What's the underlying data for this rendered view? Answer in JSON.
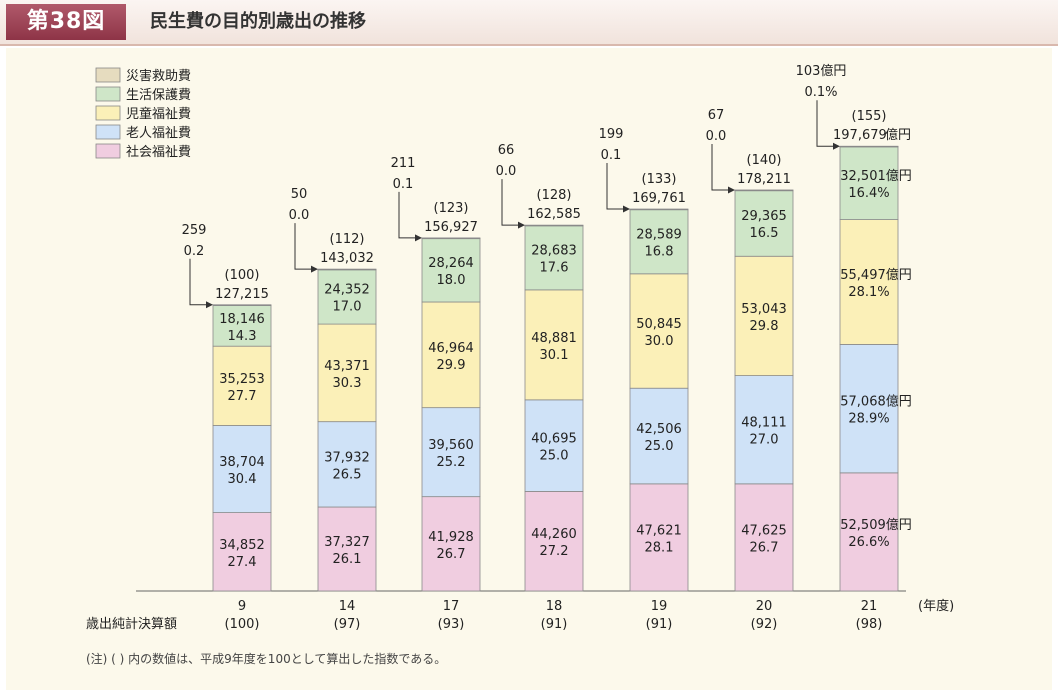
{
  "header": {
    "figure_label": "第38図",
    "title": "民生費の目的別歳出の推移"
  },
  "colors": {
    "社会福祉費": "#f0cde0",
    "老人福祉費": "#cfe2f7",
    "児童福祉費": "#fbf0b8",
    "生活保護費": "#cfe6c8",
    "災害救助費": "#e6dcbf"
  },
  "chart_data": {
    "type": "bar",
    "stacked": true,
    "title": "民生費の目的別歳出の推移",
    "xlabel": "(年度)",
    "ylabel": "",
    "unit": "億円",
    "legend_position": "top-left",
    "legend": [
      "災害救助費",
      "生活保護費",
      "児童福祉費",
      "老人福祉費",
      "社会福祉費"
    ],
    "categories": [
      "9",
      "14",
      "17",
      "18",
      "19",
      "20",
      "21"
    ],
    "index_row_label": "歳出純計決算額",
    "index_values": [
      "(100)",
      "(97)",
      "(93)",
      "(91)",
      "(91)",
      "(92)",
      "(98)"
    ],
    "totals": [
      "127,215",
      "143,032",
      "156,927",
      "162,585",
      "169,761",
      "178,211",
      "197,679"
    ],
    "totals_unit_suffix_last": "億円",
    "total_indices": [
      "(100)",
      "(112)",
      "(123)",
      "(128)",
      "(133)",
      "(140)",
      "(155)"
    ],
    "series": [
      {
        "name": "社会福祉費",
        "values": [
          34852,
          37327,
          41928,
          44260,
          47621,
          47625,
          52509
        ],
        "value_labels": [
          "34,852",
          "37,327",
          "41,928",
          "44,260",
          "47,621",
          "47,625",
          "52,509億円"
        ],
        "pct_labels": [
          "27.4",
          "26.1",
          "26.7",
          "27.2",
          "28.1",
          "26.7",
          "26.6%"
        ]
      },
      {
        "name": "老人福祉費",
        "values": [
          38704,
          37932,
          39560,
          40695,
          42506,
          48111,
          57068
        ],
        "value_labels": [
          "38,704",
          "37,932",
          "39,560",
          "40,695",
          "42,506",
          "48,111",
          "57,068億円"
        ],
        "pct_labels": [
          "30.4",
          "26.5",
          "25.2",
          "25.0",
          "25.0",
          "27.0",
          "28.9%"
        ]
      },
      {
        "name": "児童福祉費",
        "values": [
          35253,
          43371,
          46964,
          48881,
          50845,
          53043,
          55497
        ],
        "value_labels": [
          "35,253",
          "43,371",
          "46,964",
          "48,881",
          "50,845",
          "53,043",
          "55,497億円"
        ],
        "pct_labels": [
          "27.7",
          "30.3",
          "29.9",
          "30.1",
          "30.0",
          "29.8",
          "28.1%"
        ]
      },
      {
        "name": "生活保護費",
        "values": [
          18146,
          24352,
          28264,
          28683,
          28589,
          29365,
          32501
        ],
        "value_labels": [
          "18,146",
          "24,352",
          "28,264",
          "28,683",
          "28,589",
          "29,365",
          "32,501億円"
        ],
        "pct_labels": [
          "14.3",
          "17.0",
          "18.0",
          "17.6",
          "16.8",
          "16.5",
          "16.4%"
        ]
      },
      {
        "name": "災害救助費",
        "values": [
          259,
          50,
          211,
          66,
          199,
          67,
          103
        ],
        "value_labels": [
          "259",
          "50",
          "211",
          "66",
          "199",
          "67",
          "103億円"
        ],
        "pct_labels": [
          "0.2",
          "0.0",
          "0.1",
          "0.0",
          "0.1",
          "0.0",
          "0.1%"
        ]
      }
    ],
    "note": "(注) ( ) 内の数値は、平成9年度を100として算出した指数である。"
  }
}
